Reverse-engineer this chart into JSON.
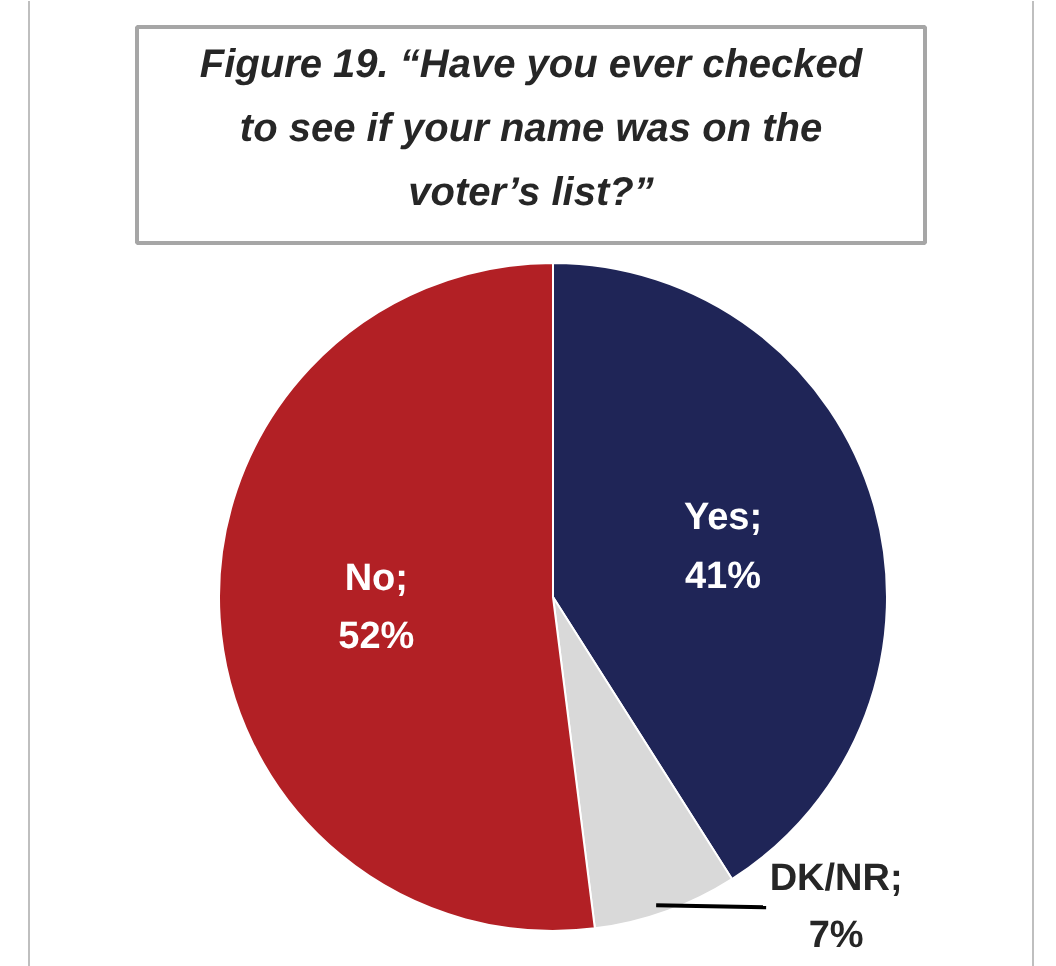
{
  "chart_data": {
    "type": "pie",
    "title": "Figure 19. “Have you ever checked to see if your name was on the voter’s list?”",
    "categories": [
      null,
      null,
      null
    ],
    "values": [
      41,
      7,
      52
    ],
    "colors": [
      "#1f2557",
      "#d9d9d9",
      "#b22025"
    ],
    "value_labels": [
      "Yes; 41%",
      "DK/NR; 7%",
      "No; 52%"
    ]
  }
}
